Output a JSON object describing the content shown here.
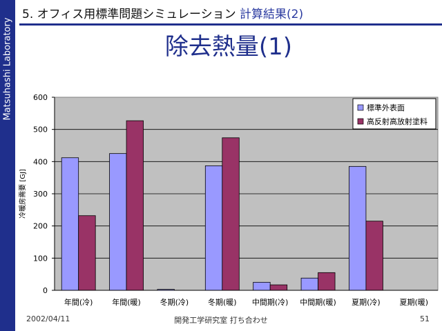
{
  "sidebar": {
    "text": "Matsuhashi Laboratory"
  },
  "header": {
    "section": "5. オフィス用標準問題シミュレーション",
    "subtitle": "計算結果(2)"
  },
  "slide_title": "除去熱量(1)",
  "footer": {
    "date": "2002/04/11",
    "center": "開発工学研究室 打ち合わせ",
    "page": "51"
  },
  "colors": {
    "series1": "#9999ff",
    "series2": "#993366",
    "plot_bg": "#c0c0c0",
    "brand": "#1f2f8c"
  },
  "chart_data": {
    "type": "bar",
    "title": "",
    "xlabel": "",
    "ylabel": "冷暖房需要 [GJ]",
    "ylim": [
      0,
      600
    ],
    "yticks": [
      0,
      100,
      200,
      300,
      400,
      500,
      600
    ],
    "grid": true,
    "legend": "top-right",
    "categories": [
      "年間(冷)",
      "年間(暖)",
      "冬期(冷)",
      "冬期(暖)",
      "中間期(冷)",
      "中間期(暖)",
      "夏期(冷)",
      "夏期(暖)"
    ],
    "series": [
      {
        "name": "標準外表面",
        "values": [
          412,
          425,
          3,
          387,
          25,
          38,
          385,
          0
        ]
      },
      {
        "name": "高反射高放射塗料",
        "values": [
          232,
          527,
          0,
          474,
          17,
          55,
          215,
          0
        ]
      }
    ]
  }
}
